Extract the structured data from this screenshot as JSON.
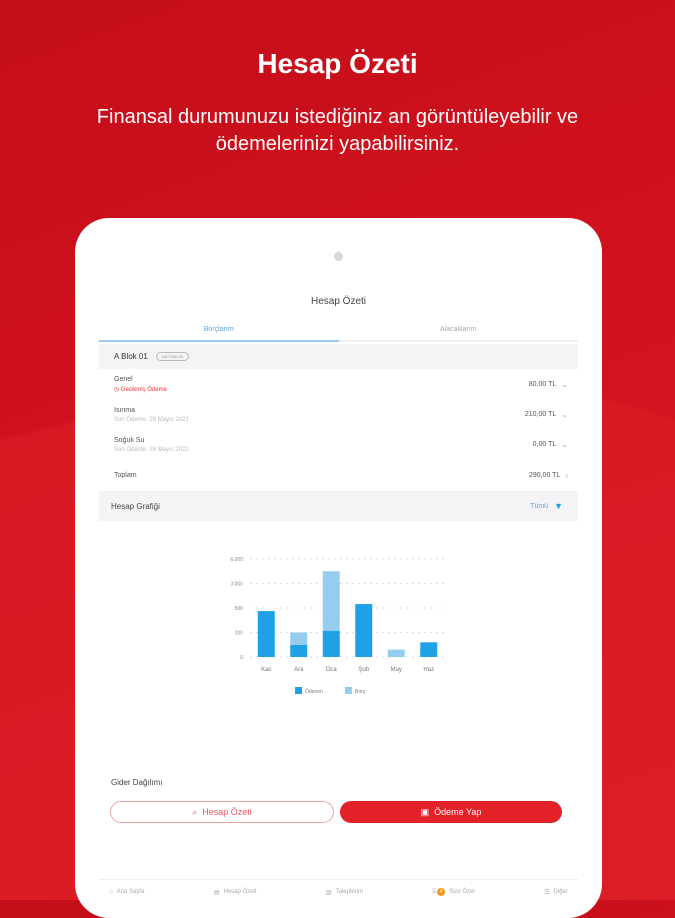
{
  "hero": {
    "title": "Hesap Özeti",
    "subtitle": "Finansal durumunuzu istediğiniz an görüntüleyebilir ve ödemelerinizi yapabilirsiniz."
  },
  "screen": {
    "title": "Hesap Özeti",
    "tabs": [
      {
        "label": "Borçlarım",
        "active": true
      },
      {
        "label": "Alacaklarım",
        "active": false
      }
    ],
    "block": {
      "name": "A Blok 01",
      "chip": "KAT MALİKİ"
    },
    "items": [
      {
        "name": "Genel",
        "sub": "Gecikmiş Ödeme",
        "amount": "80,00 TL",
        "overdue": true
      },
      {
        "name": "Isınma",
        "sub": "Son Ödeme: 28 Mayıs 2022",
        "amount": "210,00 TL",
        "overdue": false
      },
      {
        "name": "Soğuk Su",
        "sub": "Son Ödeme: 28 Mayıs 2022",
        "amount": "0,00 TL",
        "overdue": false
      }
    ],
    "total": {
      "label": "Toplam",
      "amount": "290,00 TL"
    },
    "graph": {
      "title": "Hesap Grafiği",
      "filter": "Tümü"
    },
    "gider": "Gider Dağılımı",
    "buttons": {
      "summary": "Hesap Özeti",
      "pay": "Ödeme Yap"
    },
    "nav": [
      {
        "label": "Ana Sayfa"
      },
      {
        "label": "Hesap Özeti"
      },
      {
        "label": "Taleplerim"
      },
      {
        "label": "Size Özel",
        "badge": "4"
      },
      {
        "label": "Diğer"
      }
    ]
  },
  "colors": {
    "brand": "#d5141f",
    "paid": "#1fa1e5",
    "debt": "#94cdee"
  },
  "chart_data": {
    "type": "bar",
    "stacked": true,
    "categories": [
      "Kas",
      "Ara",
      "Oca",
      "Şub",
      "May",
      "Haz"
    ],
    "yticks": [
      0,
      100,
      500,
      3000,
      6000
    ],
    "ytick_labels": [
      "0",
      "100",
      "500",
      "3.000",
      "6.000"
    ],
    "series": [
      {
        "name": "Ödenen",
        "values": [
          450,
          50,
          130,
          900,
          0,
          60
        ]
      },
      {
        "name": "Borç",
        "values": [
          0,
          50,
          4370,
          0,
          30,
          0
        ]
      }
    ],
    "legend": "bottom",
    "grid": true
  }
}
